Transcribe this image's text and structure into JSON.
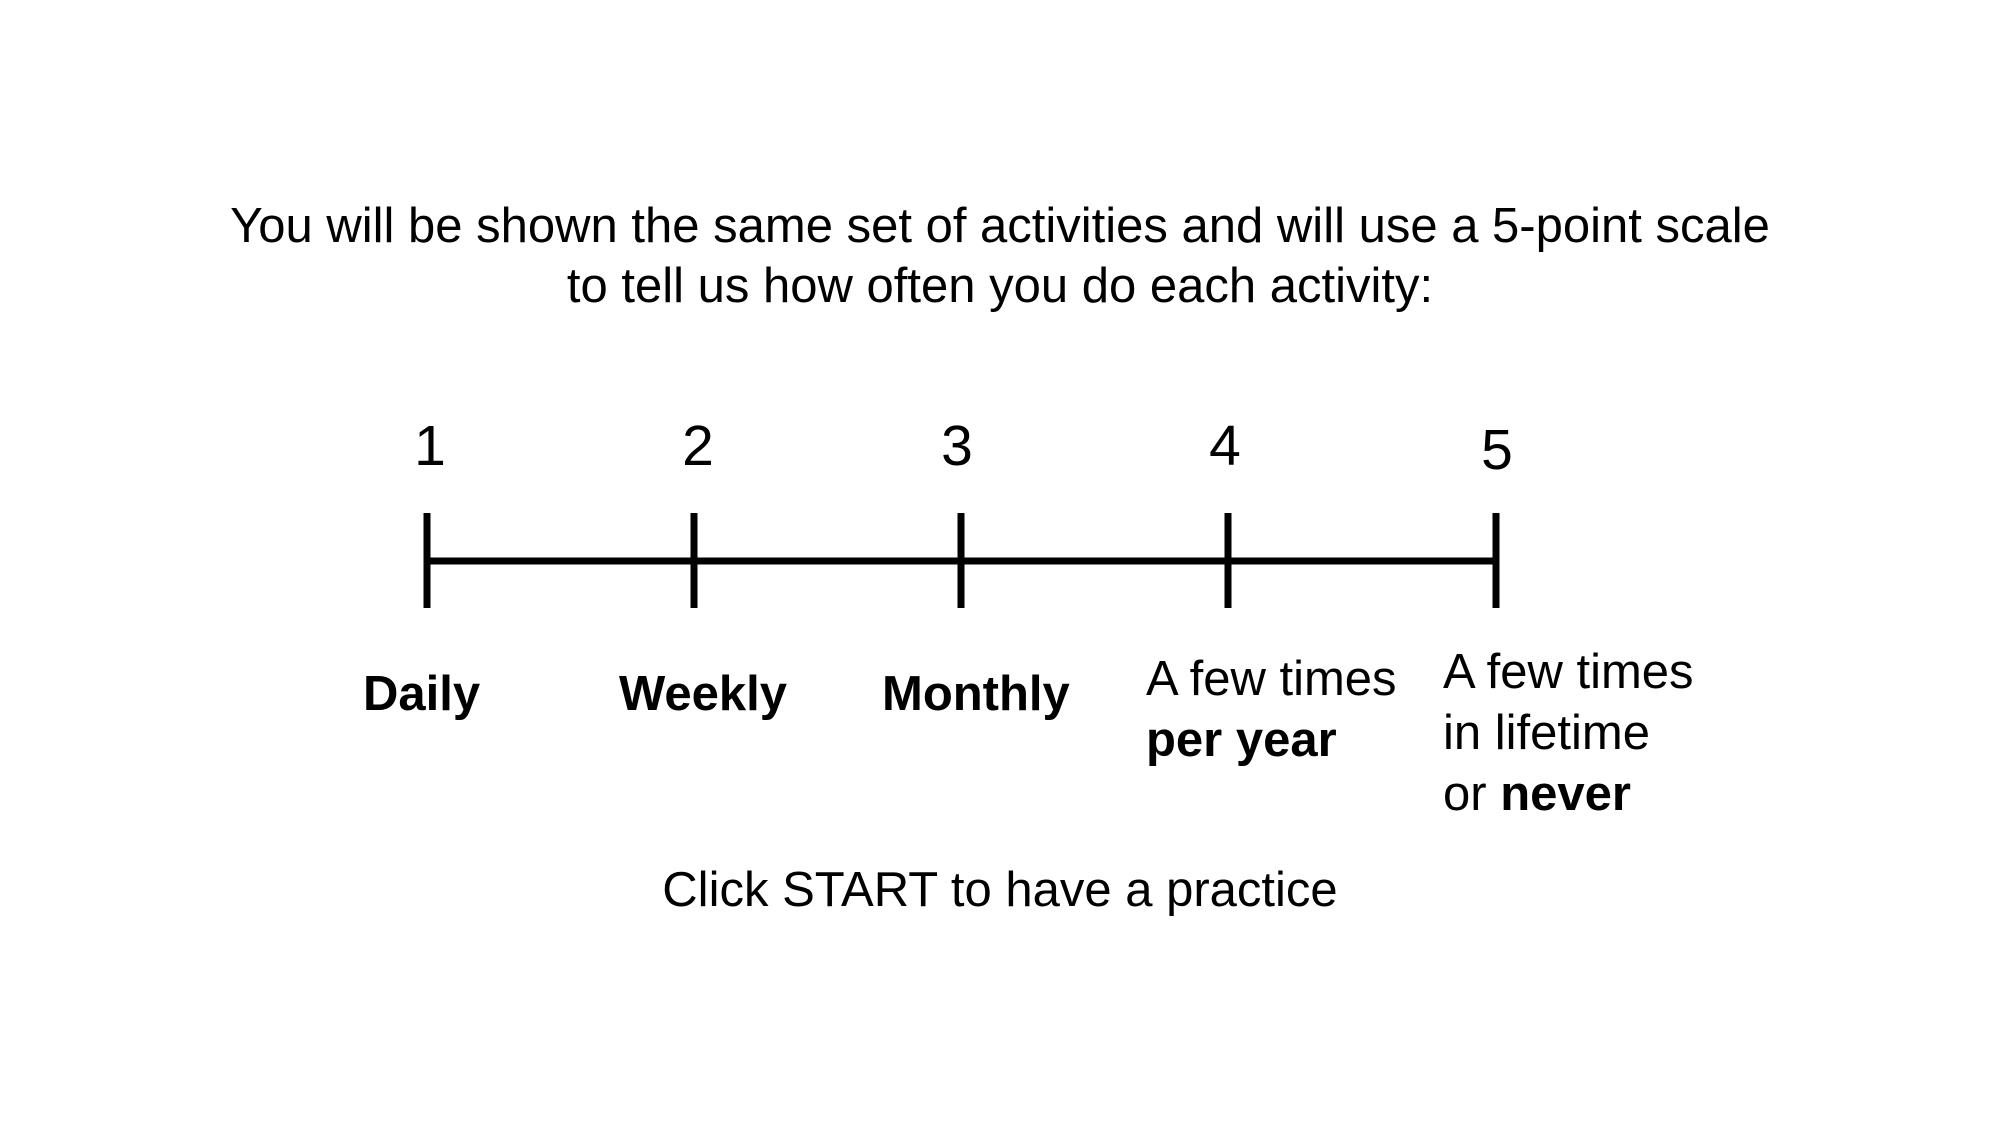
{
  "instructions": {
    "line1": "You will be shown the same set of activities and will use a 5-point scale",
    "line2": "to tell us how often you do each activity:"
  },
  "scale": {
    "points": [
      {
        "number": "1",
        "label": [
          {
            "text": "Daily",
            "bold": true
          }
        ]
      },
      {
        "number": "2",
        "label": [
          {
            "text": "Weekly",
            "bold": true
          }
        ]
      },
      {
        "number": "3",
        "label": [
          {
            "text": "Monthly",
            "bold": true
          }
        ]
      },
      {
        "number": "4",
        "label_lines": [
          [
            {
              "text": "A few times",
              "bold": false
            }
          ],
          [
            {
              "text": "per year",
              "bold": true
            }
          ]
        ]
      },
      {
        "number": "5",
        "label_lines": [
          [
            {
              "text": "A few times",
              "bold": false
            }
          ],
          [
            {
              "text": "in lifetime",
              "bold": false
            }
          ],
          [
            {
              "text": "or ",
              "bold": false
            },
            {
              "text": "never",
              "bold": true
            }
          ]
        ]
      }
    ]
  },
  "footer": {
    "start_text": "Click START to have a practice"
  }
}
